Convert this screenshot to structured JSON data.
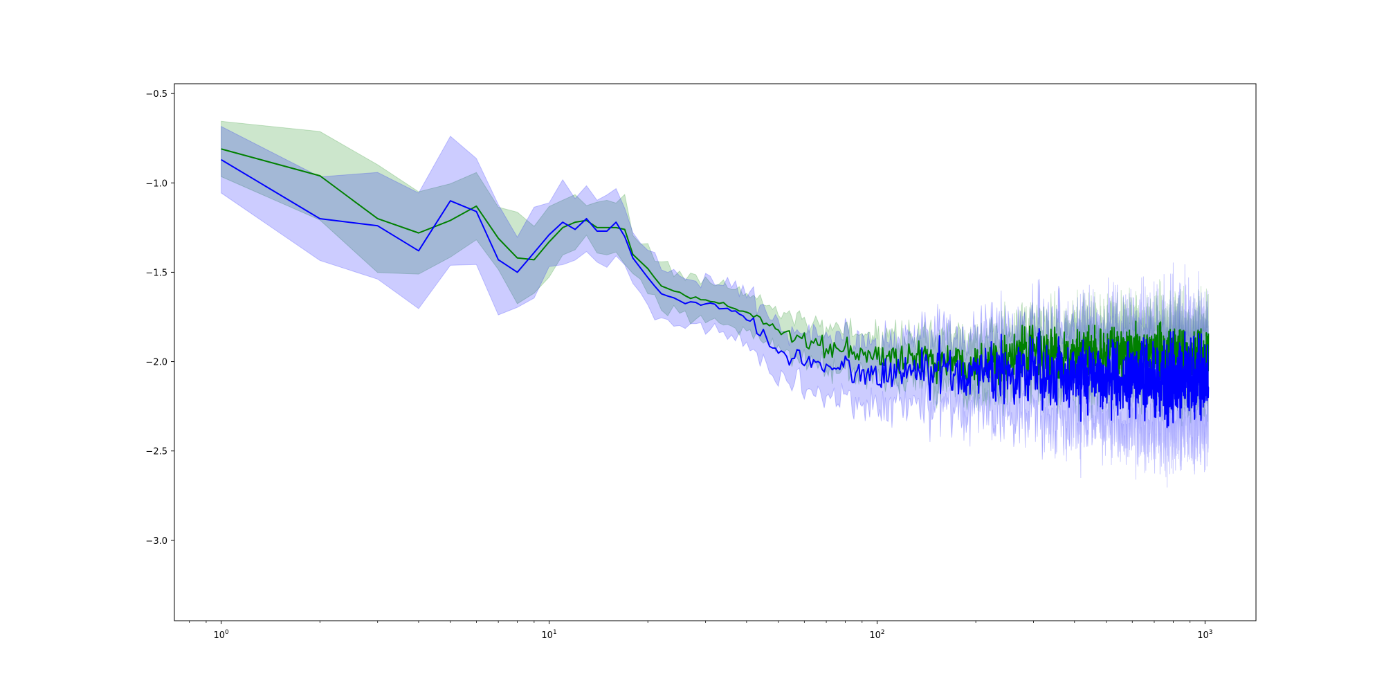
{
  "chart_data": {
    "type": "line",
    "title": "",
    "xlabel": "",
    "ylabel": "",
    "xscale": "log",
    "xlim": [
      0.72,
      1430
    ],
    "ylim": [
      -3.45,
      -0.445
    ],
    "grid": false,
    "legend": "none",
    "x_ticks": [
      {
        "base": "10",
        "exp": "0",
        "value": 1
      },
      {
        "base": "10",
        "exp": "1",
        "value": 10
      },
      {
        "base": "10",
        "exp": "2",
        "value": 100
      },
      {
        "base": "10",
        "exp": "3",
        "value": 1000
      }
    ],
    "y_ticks": [
      {
        "label": "−0.5",
        "value": -0.5
      },
      {
        "label": "−1.0",
        "value": -1.0
      },
      {
        "label": "−1.5",
        "value": -1.5
      },
      {
        "label": "−2.0",
        "value": -2.0
      },
      {
        "label": "−2.5",
        "value": -2.5
      },
      {
        "label": "−3.0",
        "value": -3.0
      }
    ],
    "series": [
      {
        "color": "#008000",
        "band_color": "#008000",
        "band_opacity": 0.2,
        "key_points": {
          "x": [
            1,
            2,
            3,
            4,
            5,
            6,
            7,
            8,
            9,
            10,
            11,
            12,
            13,
            14,
            15,
            16,
            17,
            18,
            20,
            22,
            25,
            30,
            40,
            50,
            60,
            80,
            100,
            150,
            200,
            300,
            400,
            600,
            800,
            1024
          ],
          "y": [
            -0.81,
            -0.96,
            -1.2,
            -1.28,
            -1.21,
            -1.13,
            -1.31,
            -1.42,
            -1.43,
            -1.33,
            -1.25,
            -1.22,
            -1.21,
            -1.25,
            -1.25,
            -1.25,
            -1.26,
            -1.4,
            -1.48,
            -1.58,
            -1.62,
            -1.66,
            -1.72,
            -1.82,
            -1.88,
            -1.95,
            -1.97,
            -1.99,
            -2.0,
            -1.95,
            -1.97,
            -1.95,
            -1.97,
            -1.98
          ]
        },
        "band_halfwidth": {
          "x": [
            1,
            2,
            4,
            6,
            9,
            13,
            17,
            25,
            40,
            60,
            100,
            200,
            400,
            1024
          ],
          "w": [
            0.23,
            0.22,
            0.28,
            0.21,
            0.23,
            0.12,
            0.15,
            0.11,
            0.1,
            0.11,
            0.12,
            0.14,
            0.17,
            0.19
          ]
        },
        "noise": {
          "x": [
            1,
            20,
            40,
            80,
            150,
            300,
            1024
          ],
          "amp": [
            0.0,
            0.0,
            0.04,
            0.1,
            0.16,
            0.21,
            0.23
          ]
        }
      },
      {
        "color": "#0000ff",
        "band_color": "#0000ff",
        "band_opacity": 0.2,
        "key_points": {
          "x": [
            1,
            2,
            3,
            4,
            5,
            6,
            7,
            8,
            9,
            10,
            11,
            12,
            13,
            14,
            15,
            16,
            17,
            18,
            20,
            22,
            25,
            30,
            40,
            50,
            60,
            80,
            100,
            150,
            200,
            300,
            400,
            600,
            800,
            1024
          ],
          "y": [
            -0.87,
            -1.2,
            -1.24,
            -1.38,
            -1.1,
            -1.16,
            -1.43,
            -1.5,
            -1.39,
            -1.29,
            -1.22,
            -1.26,
            -1.2,
            -1.27,
            -1.27,
            -1.22,
            -1.3,
            -1.42,
            -1.53,
            -1.62,
            -1.66,
            -1.68,
            -1.75,
            -1.95,
            -1.98,
            -2.05,
            -2.07,
            -2.05,
            -2.06,
            -2.05,
            -2.07,
            -2.1,
            -2.1,
            -2.1
          ]
        },
        "band_halfwidth": {
          "x": [
            1,
            2,
            4,
            6,
            9,
            13,
            17,
            25,
            40,
            60,
            100,
            200,
            400,
            1024
          ],
          "w": [
            0.24,
            0.35,
            0.31,
            0.26,
            0.25,
            0.18,
            0.15,
            0.14,
            0.13,
            0.15,
            0.18,
            0.22,
            0.26,
            0.3
          ]
        },
        "noise": {
          "x": [
            1,
            20,
            40,
            80,
            150,
            300,
            1024
          ],
          "amp": [
            0.0,
            0.0,
            0.05,
            0.12,
            0.2,
            0.28,
            0.33
          ]
        }
      }
    ]
  }
}
